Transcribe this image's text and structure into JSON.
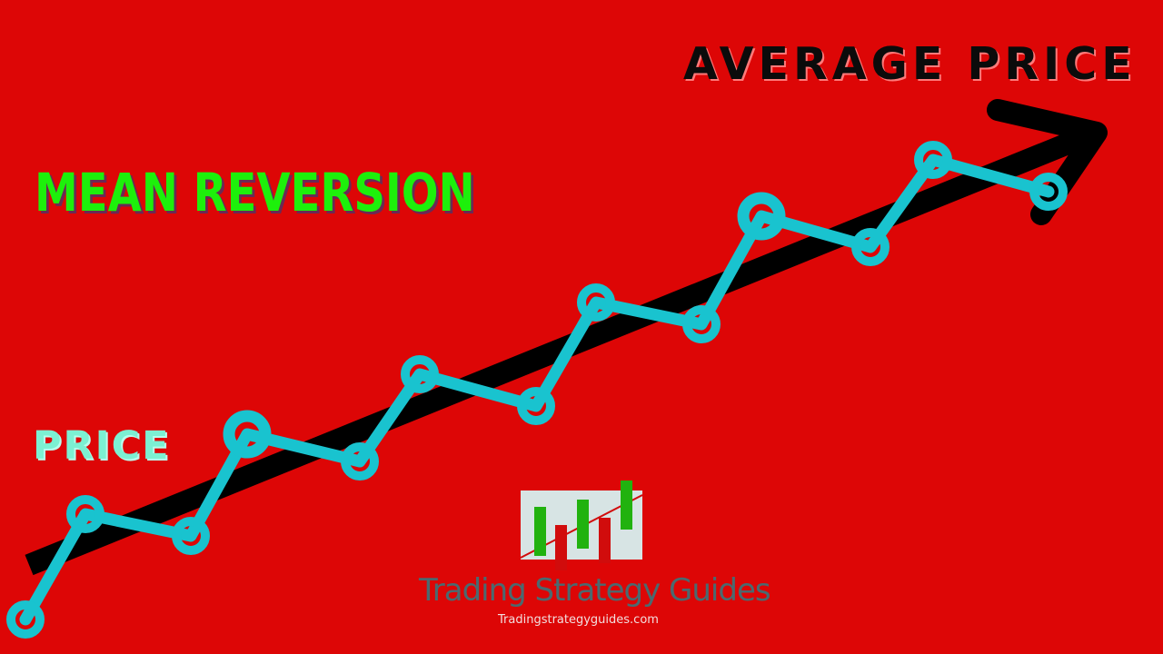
{
  "title": "MEAN REVERSION",
  "average_label": "AVERAGE PRICE",
  "price_label": "PRICE",
  "brand": {
    "name": "Trading Strategy Guides",
    "url": "Tradingstrategyguides.com"
  },
  "colors": {
    "background": "#dd0606",
    "price_line": "#19c3cf",
    "average_arrow": "#000000",
    "title": "#1df00b",
    "price_label": "#7cf0d2",
    "logo_green": "#21b20f",
    "logo_red": "#d10c0c",
    "logo_bg": "#d7e4e4"
  }
}
